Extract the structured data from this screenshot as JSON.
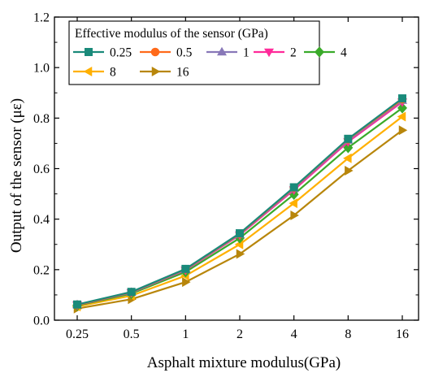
{
  "chart_data": {
    "type": "line",
    "title": "",
    "xlabel": "Asphalt mixture modulus(GPa)",
    "ylabel": "Output of the sensor (με)",
    "categories": [
      "0.25",
      "0.5",
      "1",
      "2",
      "4",
      "8",
      "16"
    ],
    "ylim": [
      0,
      1.2
    ],
    "yticks": [
      "0.0",
      "0.2",
      "0.4",
      "0.6",
      "0.8",
      "1.0",
      "1.2"
    ],
    "grid": false,
    "legend": {
      "title": "Effective modulus of the sensor (GPa)",
      "placement": "top-left"
    },
    "series": [
      {
        "name": "0.25",
        "color": "#1a8a7a",
        "marker": "square",
        "values": [
          0.062,
          0.112,
          0.203,
          0.344,
          0.526,
          0.718,
          0.878
        ]
      },
      {
        "name": "0.5",
        "color": "#ff6a1a",
        "marker": "circle",
        "values": [
          0.061,
          0.111,
          0.202,
          0.342,
          0.524,
          0.716,
          0.874
        ]
      },
      {
        "name": "1",
        "color": "#8878b8",
        "marker": "triangle-up",
        "values": [
          0.061,
          0.11,
          0.2,
          0.34,
          0.521,
          0.712,
          0.87
        ]
      },
      {
        "name": "2",
        "color": "#ff2a9a",
        "marker": "triangle-down",
        "values": [
          0.06,
          0.109,
          0.198,
          0.337,
          0.516,
          0.706,
          0.864
        ]
      },
      {
        "name": "4",
        "color": "#3aaa2a",
        "marker": "diamond",
        "values": [
          0.058,
          0.105,
          0.191,
          0.325,
          0.498,
          0.683,
          0.84
        ]
      },
      {
        "name": "8",
        "color": "#ffb000",
        "marker": "triangle-left",
        "values": [
          0.054,
          0.097,
          0.176,
          0.3,
          0.463,
          0.641,
          0.806
        ]
      },
      {
        "name": "16",
        "color": "#b8860b",
        "marker": "triangle-right",
        "values": [
          0.046,
          0.083,
          0.151,
          0.262,
          0.415,
          0.592,
          0.752
        ]
      }
    ]
  }
}
